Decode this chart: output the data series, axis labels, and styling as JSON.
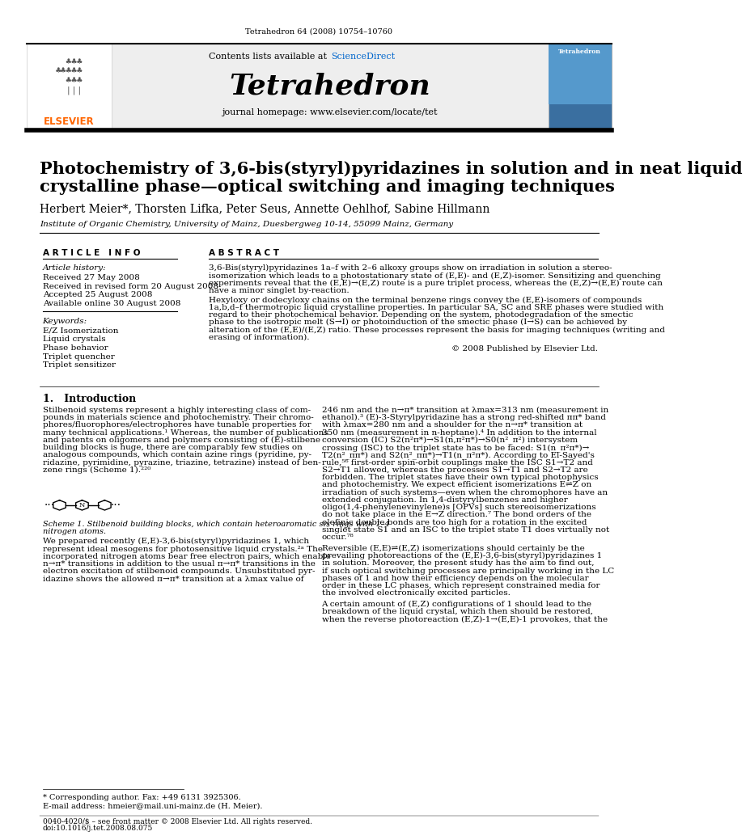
{
  "page_bg": "#ffffff",
  "top_citation": "Tetrahedron 64 (2008) 10754–10760",
  "header_bg": "#e8e8e8",
  "header_border_color": "#000000",
  "elsevier_text": "ELSEVIER",
  "elsevier_color": "#ff6600",
  "contents_text": "Contents lists available at ",
  "sciencedirect_text": "ScienceDirect",
  "sciencedirect_color": "#0066cc",
  "journal_title": "Tetrahedron",
  "journal_homepage": "journal homepage: www.elsevier.com/locate/tet",
  "article_title_line1": "Photochemistry of 3,6-bis(styryl)pyridazines in solution and in neat liquid",
  "article_title_line2": "crystalline phase—optical switching and imaging techniques",
  "authors": "Herbert Meier*, Thorsten Lifka, Peter Seus, Annette Oehlhof, Sabine Hillmann",
  "affiliation": "Institute of Organic Chemistry, University of Mainz, Duesbergweg 10-14, 55099 Mainz, Germany",
  "article_info_header": "A R T I C L E   I N F O",
  "abstract_header": "A B S T R A C T",
  "article_history_label": "Article history:",
  "received": "Received 27 May 2008",
  "received_revised": "Received in revised form 20 August 2008",
  "accepted": "Accepted 25 August 2008",
  "available": "Available online 30 August 2008",
  "keywords_label": "Keywords:",
  "keywords": [
    "E/Z Isomerization",
    "Liquid crystals",
    "Phase behavior",
    "Triplet quencher",
    "Triplet sensitizer"
  ],
  "abstract_copyright": "© 2008 Published by Elsevier Ltd.",
  "section1_title": "1.   Introduction",
  "footnote_star": "* Corresponding author. Fax: +49 6131 3925306.",
  "footnote_email": "E-mail address: hmeier@mail.uni-mainz.de (H. Meier).",
  "footer_left": "0040-4020/$ – see front matter © 2008 Elsevier Ltd. All rights reserved.",
  "footer_doi": "doi:10.1016/j.tet.2008.08.075",
  "abstract_lines_1": [
    "3,6-Bis(styryl)pyridazines 1a–f with 2–6 alkoxy groups show on irradiation in solution a stereo-",
    "isomerization which leads to a photostationary state of (E,E)- and (E,Z)-isomer. Sensitizing and quenching",
    "experiments reveal that the (E,E)→(E,Z) route is a pure triplet process, whereas the (E,Z)→(E,E) route can",
    "have a minor singlet by-reaction."
  ],
  "abstract_lines_2": [
    "Hexyloxy or dodecyloxy chains on the terminal benzene rings convey the (E,E)-isomers of compounds",
    "1a,b,d–f thermotropic liquid crystalline properties. In particular SA, SC and SRE phases were studied with",
    "regard to their photochemical behavior. Depending on the system, photodegradation of the smectic",
    "phase to the isotropic melt (S→I) or photoinduction of the smectic phase (I→S) can be achieved by",
    "alteration of the (E,E)/(E,Z) ratio. These processes represent the basis for imaging techniques (writing and",
    "erasing of information)."
  ],
  "intro1_lines": [
    "Stilbenoid systems represent a highly interesting class of com-",
    "pounds in materials science and photochemistry. Their chromo-",
    "phores/fluorophores/electrophores have tunable properties for",
    "many technical applications.¹ Whereas, the number of publications",
    "and patents on oligomers and polymers consisting of (E)-stilbene",
    "building blocks is huge, there are comparably few studies on",
    "analogous compounds, which contain azine rings (pyridine, py-",
    "ridazine, pyrimidine, pyrazine, triazine, tetrazine) instead of ben-",
    "zene rings (Scheme 1).²²⁰"
  ],
  "scheme1_cap1": "Scheme 1. Stilbenoid building blocks, which contain heteroaromatic six rings with 1–4",
  "scheme1_cap2": "nitrogen atoms.",
  "intro1b_lines": [
    "We prepared recently (E,E)-3,6-bis(styryl)pyridazines 1, which",
    "represent ideal mesogens for photosensitive liquid crystals.²ᵃ The",
    "incorporated nitrogen atoms bear free electron pairs, which enable",
    "n→π* transitions in addition to the usual π→π* transitions in the",
    "electron excitation of stilbenoid compounds. Unsubstituted pyr-",
    "idazine shows the allowed π→π* transition at a λmax value of"
  ],
  "intro2_lines": [
    "246 nm and the n→π* transition at λmax=313 nm (measurement in",
    "ethanol).³ (E)-3-Styrylpyridazine has a strong red-shifted ππ* band",
    "with λmax=280 nm and a shoulder for the n→π* transition at",
    "350 nm (measurement in n-heptane).⁴ In addition to the internal",
    "conversion (IC) S2(n²π*)→S1(n,π²π*)→S0(n²_π²) intersystem",
    "crossing (ISC) to the triplet state has to be faced: S1(n_π²π*)→",
    "T2(n²_ππ*) and S2(n²_ππ*)→T1(n_π²π*). According to El-Sayed's",
    "rule,⁵⁶ first-order spin-orbit couplings make the ISC S1→T2 and",
    "S2→T1 allowed, whereas the processes S1→T1 and S2→T2 are",
    "forbidden. The triplet states have their own typical photophysics",
    "and photochemistry. We expect efficient isomerizations E⇌Z on",
    "irradiation of such systems—even when the chromophores have an",
    "extended conjugation. In 1,4-distyrylbenzenes and higher",
    "oligo(1,4-phenylenevinylene)s [OPVs] such stereoisomerizations",
    "do not take place in the E→Z direction.⁷ The bond orders of the",
    "olefinic double bonds are too high for a rotation in the excited",
    "singlet state S1 and an ISC to the triplet state T1 does virtually not",
    "occur.⁷⁸"
  ],
  "intro2b_lines": [
    "Reversible (E,E)⇌(E,Z) isomerizations should certainly be the",
    "prevailing photoreactions of the (E,E)-3,6-bis(styryl)pyridazines 1",
    "in solution. Moreover, the present study has the aim to find out,",
    "if such optical switching processes are principally working in the LC",
    "phases of 1 and how their efficiency depends on the molecular",
    "order in these LC phases, which represent constrained media for",
    "the involved electronically excited particles."
  ],
  "intro2c_lines": [
    "A certain amount of (E,Z) configurations of 1 should lead to the",
    "breakdown of the liquid crystal, which then should be restored,",
    "when the reverse photoreaction (E,Z)-1→(E,E)-1 provokes, that the"
  ]
}
